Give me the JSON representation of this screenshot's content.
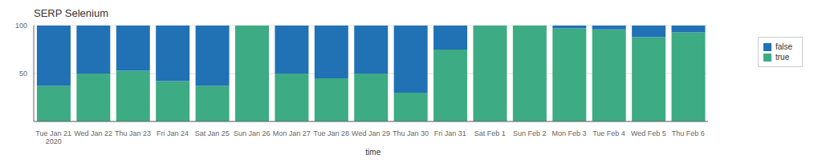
{
  "chart_data": {
    "type": "bar",
    "title": "SERP Selenium",
    "xlabel": "_time",
    "categories": [
      "Tue Jan 21\n2020",
      "Wed Jan 22",
      "Thu Jan 23",
      "Fri Jan 24",
      "Sat Jan 25",
      "Sun Jan 26",
      "Mon Jan 27",
      "Tue Jan 28",
      "Wed Jan 29",
      "Thu Jan 30",
      "Fri Jan 31",
      "Sat Feb 1",
      "Sun Feb 2",
      "Mon Feb 3",
      "Tue Feb 4",
      "Wed Feb 5",
      "Thu Feb 6"
    ],
    "series": [
      {
        "name": "true",
        "color": "#3dab83",
        "values": [
          37,
          50,
          53,
          42,
          37,
          100,
          50,
          45,
          50,
          30,
          75,
          100,
          100,
          97,
          96,
          88,
          93
        ]
      },
      {
        "name": "false",
        "color": "#2171b5",
        "values": [
          63,
          50,
          47,
          58,
          63,
          0,
          50,
          55,
          50,
          70,
          25,
          0,
          0,
          3,
          4,
          12,
          7
        ]
      }
    ],
    "stacked": true,
    "ylim": [
      0,
      100
    ],
    "yticks": [
      50,
      100
    ],
    "grid": true,
    "legend": "right"
  }
}
